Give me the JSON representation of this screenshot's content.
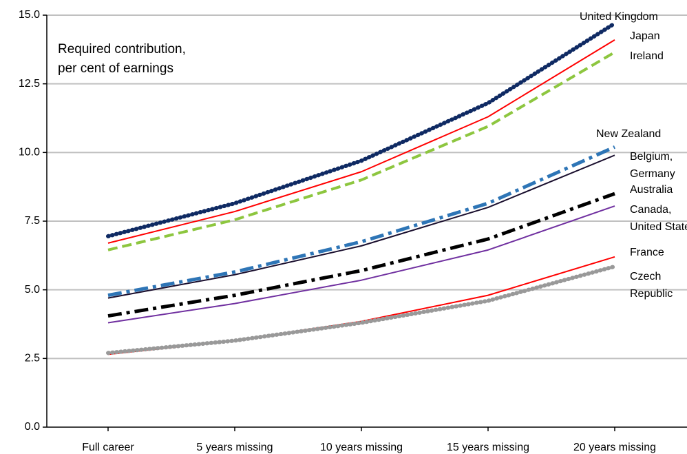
{
  "chart_data": {
    "type": "line",
    "annotation": [
      "Required contribution,",
      "per cent of earnings"
    ],
    "categories": [
      "Full career",
      "5 years missing",
      "10 years missing",
      "15 years missing",
      "20 years missing"
    ],
    "ylim": [
      0,
      15
    ],
    "yticks": [
      {
        "value": 0,
        "label": "0.0"
      },
      2.5,
      {
        "value": 5,
        "label": "5.0"
      },
      7.5,
      {
        "value": 10,
        "label": "10.0"
      },
      12.5,
      {
        "value": 15,
        "label": "15.0"
      }
    ],
    "grid": true,
    "series": [
      {
        "name": "United Kingdom",
        "color": "#0f2a63",
        "style": "dotted",
        "values": [
          6.95,
          8.15,
          9.7,
          11.8,
          14.7
        ]
      },
      {
        "name": "Japan",
        "color": "#ff0000",
        "style": "solid",
        "values": [
          6.7,
          7.85,
          9.3,
          11.3,
          14.1
        ]
      },
      {
        "name": "Ireland",
        "color": "#8dc63f",
        "style": "dashed",
        "values": [
          6.45,
          7.55,
          9.0,
          10.95,
          13.65
        ]
      },
      {
        "name": "New Zealand",
        "color": "#2e75b6",
        "style": "dash-dot",
        "values": [
          4.8,
          5.65,
          6.75,
          8.15,
          10.2
        ]
      },
      {
        "name": "Belgium, Germany",
        "color": "#1a0f2e",
        "style": "solid",
        "values": [
          4.7,
          5.55,
          6.6,
          8.0,
          9.9
        ]
      },
      {
        "name": "Australia",
        "color": "#000000",
        "style": "dash-dot",
        "values": [
          4.05,
          4.8,
          5.7,
          6.85,
          8.5
        ]
      },
      {
        "name": "Canada, United States",
        "color": "#7030a0",
        "style": "solid",
        "values": [
          3.8,
          4.5,
          5.35,
          6.45,
          8.05
        ]
      },
      {
        "name": "France",
        "color": "#ff0000",
        "style": "solid",
        "values": [
          2.65,
          3.15,
          3.85,
          4.8,
          6.2
        ]
      },
      {
        "name": "Czech Republic",
        "color": "#999999",
        "style": "dotted",
        "values": [
          2.7,
          3.15,
          3.8,
          4.6,
          5.85
        ]
      }
    ]
  }
}
